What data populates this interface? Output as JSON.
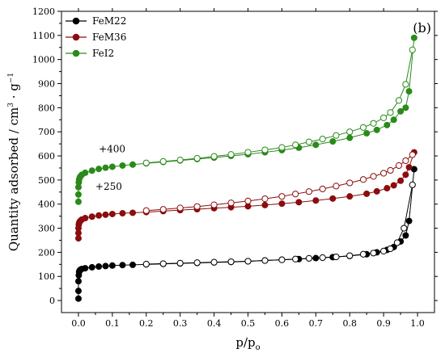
{
  "chart_data": {
    "type": "scatter",
    "panel_label": "(b)",
    "xlabel": "p/p",
    "xlabel_sub": "o",
    "ylabel": "Quantity adsorbed / cm",
    "ylabel_sup1": "3",
    "ylabel_mid": " · g",
    "ylabel_sup2": "−1",
    "xlim": [
      -0.05,
      1.05
    ],
    "ylim": [
      -50,
      1200
    ],
    "x_ticks": [
      0.0,
      0.1,
      0.2,
      0.3,
      0.4,
      0.5,
      0.6,
      0.7,
      0.8,
      0.9,
      1.0
    ],
    "x_tick_labels": [
      "0.0",
      "0.1",
      "0.2",
      "0.3",
      "0.4",
      "0.5",
      "0.6",
      "0.7",
      "0.8",
      "0.9",
      "1.0"
    ],
    "y_ticks": [
      0,
      100,
      200,
      300,
      400,
      500,
      600,
      700,
      800,
      900,
      1000,
      1100,
      1200
    ],
    "y_tick_labels": [
      "0",
      "100",
      "200",
      "300",
      "400",
      "500",
      "600",
      "700",
      "800",
      "900",
      "1000",
      "1100",
      "1200"
    ],
    "legend_position": "top-left",
    "annotations": [
      {
        "text": "+400",
        "x": 0.06,
        "y": 615
      },
      {
        "text": "+250",
        "x": 0.05,
        "y": 460
      }
    ],
    "series": [
      {
        "name": "FeM22",
        "color": "#000000",
        "adsorption": [
          [
            0.0,
            8
          ],
          [
            0.0,
            40
          ],
          [
            0.0,
            80
          ],
          [
            0.001,
            105
          ],
          [
            0.002,
            118
          ],
          [
            0.003,
            123
          ],
          [
            0.005,
            127
          ],
          [
            0.01,
            131
          ],
          [
            0.02,
            134
          ],
          [
            0.04,
            138
          ],
          [
            0.06,
            141
          ],
          [
            0.08,
            143
          ],
          [
            0.1,
            145
          ],
          [
            0.13,
            147
          ],
          [
            0.16,
            148
          ],
          [
            0.2,
            150
          ],
          [
            0.25,
            152
          ],
          [
            0.3,
            154
          ],
          [
            0.35,
            156
          ],
          [
            0.4,
            158
          ],
          [
            0.45,
            160
          ],
          [
            0.5,
            163
          ],
          [
            0.55,
            166
          ],
          [
            0.6,
            169
          ],
          [
            0.65,
            172
          ],
          [
            0.7,
            176
          ],
          [
            0.75,
            180
          ],
          [
            0.8,
            185
          ],
          [
            0.85,
            192
          ],
          [
            0.88,
            200
          ],
          [
            0.91,
            210
          ],
          [
            0.93,
            222
          ],
          [
            0.95,
            245
          ],
          [
            0.965,
            270
          ],
          [
            0.975,
            330
          ],
          [
            0.99,
            545
          ]
        ],
        "desorption": [
          [
            0.985,
            480
          ],
          [
            0.96,
            300
          ],
          [
            0.94,
            240
          ],
          [
            0.92,
            215
          ],
          [
            0.9,
            205
          ],
          [
            0.87,
            197
          ],
          [
            0.84,
            192
          ],
          [
            0.8,
            186
          ],
          [
            0.76,
            181
          ],
          [
            0.72,
            178
          ],
          [
            0.68,
            175
          ],
          [
            0.64,
            172
          ],
          [
            0.6,
            169
          ],
          [
            0.55,
            166
          ],
          [
            0.5,
            163
          ],
          [
            0.45,
            161
          ],
          [
            0.4,
            159
          ],
          [
            0.35,
            157
          ],
          [
            0.3,
            155
          ],
          [
            0.25,
            153
          ],
          [
            0.2,
            151
          ]
        ]
      },
      {
        "name": "FeM36",
        "color": "#8b0d0d",
        "adsorption": [
          [
            0.0,
            258
          ],
          [
            0.0,
            280
          ],
          [
            0.0,
            300
          ],
          [
            0.001,
            315
          ],
          [
            0.002,
            322
          ],
          [
            0.004,
            328
          ],
          [
            0.007,
            332
          ],
          [
            0.01,
            336
          ],
          [
            0.02,
            342
          ],
          [
            0.04,
            348
          ],
          [
            0.06,
            353
          ],
          [
            0.08,
            356
          ],
          [
            0.1,
            359
          ],
          [
            0.13,
            362
          ],
          [
            0.16,
            364
          ],
          [
            0.2,
            367
          ],
          [
            0.25,
            371
          ],
          [
            0.3,
            375
          ],
          [
            0.35,
            379
          ],
          [
            0.4,
            383
          ],
          [
            0.45,
            387
          ],
          [
            0.5,
            391
          ],
          [
            0.55,
            396
          ],
          [
            0.6,
            402
          ],
          [
            0.65,
            408
          ],
          [
            0.7,
            415
          ],
          [
            0.75,
            423
          ],
          [
            0.8,
            432
          ],
          [
            0.85,
            443
          ],
          [
            0.88,
            453
          ],
          [
            0.91,
            466
          ],
          [
            0.93,
            478
          ],
          [
            0.95,
            497
          ],
          [
            0.965,
            522
          ],
          [
            0.975,
            553
          ],
          [
            0.99,
            615
          ]
        ],
        "desorption": [
          [
            0.985,
            605
          ],
          [
            0.965,
            580
          ],
          [
            0.945,
            560
          ],
          [
            0.92,
            540
          ],
          [
            0.9,
            528
          ],
          [
            0.87,
            515
          ],
          [
            0.84,
            502
          ],
          [
            0.8,
            488
          ],
          [
            0.76,
            475
          ],
          [
            0.72,
            463
          ],
          [
            0.68,
            452
          ],
          [
            0.64,
            442
          ],
          [
            0.6,
            432
          ],
          [
            0.55,
            422
          ],
          [
            0.5,
            413
          ],
          [
            0.45,
            405
          ],
          [
            0.4,
            397
          ],
          [
            0.35,
            390
          ],
          [
            0.3,
            384
          ],
          [
            0.25,
            378
          ],
          [
            0.2,
            373
          ]
        ]
      },
      {
        "name": "FeI2",
        "color": "#2a8a1a",
        "adsorption": [
          [
            0.0,
            410
          ],
          [
            0.0,
            440
          ],
          [
            0.0,
            470
          ],
          [
            0.001,
            490
          ],
          [
            0.002,
            502
          ],
          [
            0.004,
            511
          ],
          [
            0.007,
            517
          ],
          [
            0.01,
            522
          ],
          [
            0.02,
            530
          ],
          [
            0.04,
            539
          ],
          [
            0.06,
            546
          ],
          [
            0.08,
            551
          ],
          [
            0.1,
            555
          ],
          [
            0.13,
            560
          ],
          [
            0.16,
            564
          ],
          [
            0.2,
            569
          ],
          [
            0.25,
            575
          ],
          [
            0.3,
            581
          ],
          [
            0.35,
            587
          ],
          [
            0.4,
            593
          ],
          [
            0.45,
            600
          ],
          [
            0.5,
            607
          ],
          [
            0.55,
            615
          ],
          [
            0.6,
            624
          ],
          [
            0.65,
            634
          ],
          [
            0.7,
            646
          ],
          [
            0.75,
            660
          ],
          [
            0.8,
            675
          ],
          [
            0.85,
            694
          ],
          [
            0.88,
            708
          ],
          [
            0.91,
            728
          ],
          [
            0.93,
            750
          ],
          [
            0.95,
            785
          ],
          [
            0.965,
            800
          ],
          [
            0.975,
            868
          ],
          [
            0.99,
            1090
          ]
        ],
        "desorption": [
          [
            0.985,
            1040
          ],
          [
            0.965,
            897
          ],
          [
            0.945,
            830
          ],
          [
            0.92,
            780
          ],
          [
            0.9,
            758
          ],
          [
            0.87,
            735
          ],
          [
            0.84,
            718
          ],
          [
            0.8,
            700
          ],
          [
            0.76,
            685
          ],
          [
            0.72,
            670
          ],
          [
            0.68,
            658
          ],
          [
            0.64,
            646
          ],
          [
            0.6,
            635
          ],
          [
            0.55,
            625
          ],
          [
            0.5,
            615
          ],
          [
            0.45,
            606
          ],
          [
            0.4,
            598
          ],
          [
            0.35,
            590
          ],
          [
            0.3,
            583
          ],
          [
            0.25,
            577
          ],
          [
            0.2,
            571
          ]
        ]
      }
    ]
  }
}
